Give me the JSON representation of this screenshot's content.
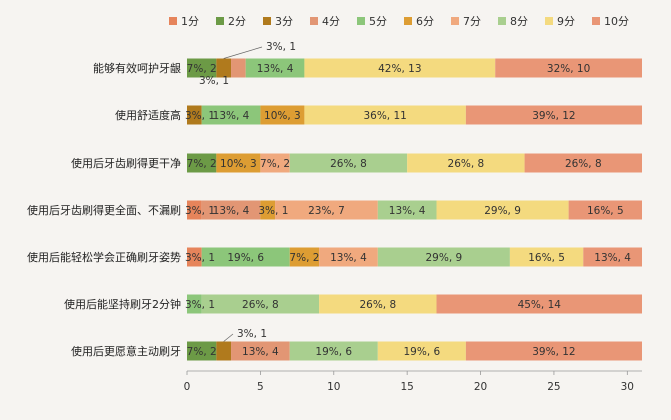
{
  "chart_data": {
    "type": "bar",
    "orientation": "horizontal",
    "stacked": true,
    "legend_position": "top",
    "grid": false,
    "xlim": [
      0,
      31
    ],
    "xticks": [
      0,
      5,
      10,
      15,
      20,
      25,
      30
    ],
    "legend": [
      "1分",
      "2分",
      "3分",
      "4分",
      "5分",
      "6分",
      "7分",
      "8分",
      "9分",
      "10分"
    ],
    "colors": [
      "#e6845b",
      "#6c9a46",
      "#b07a1d",
      "#e29674",
      "#8cc67a",
      "#dd9d33",
      "#f0a97e",
      "#a9cf8f",
      "#f4da7f",
      "#e99676"
    ],
    "categories": [
      "能够有效呵护牙龈",
      "使用舒适度高",
      "使用后牙齿刷得更干净",
      "使用后牙齿刷得更全面、不漏刷",
      "使用后能轻松学会正确刷牙姿势",
      "使用后能坚持刷牙2分钟",
      "使用后更愿意主动刷牙"
    ],
    "series": [
      {
        "name": "1分",
        "values": [
          0,
          0,
          0,
          1,
          1,
          0,
          0
        ]
      },
      {
        "name": "2分",
        "values": [
          2,
          0,
          2,
          0,
          0,
          0,
          2
        ]
      },
      {
        "name": "3分",
        "values": [
          1,
          1,
          0,
          0,
          0,
          0,
          1
        ]
      },
      {
        "name": "4分",
        "values": [
          1,
          0,
          0,
          4,
          0,
          0,
          4
        ]
      },
      {
        "name": "5分",
        "values": [
          4,
          4,
          0,
          0,
          6,
          1,
          0
        ]
      },
      {
        "name": "6分",
        "values": [
          0,
          3,
          3,
          1,
          2,
          0,
          0
        ]
      },
      {
        "name": "7分",
        "values": [
          0,
          0,
          2,
          7,
          4,
          0,
          0
        ]
      },
      {
        "name": "8分",
        "values": [
          0,
          0,
          8,
          4,
          9,
          8,
          6
        ]
      },
      {
        "name": "9分",
        "values": [
          13,
          11,
          8,
          9,
          5,
          8,
          6
        ]
      },
      {
        "name": "10分",
        "values": [
          10,
          12,
          8,
          5,
          4,
          14,
          12
        ]
      }
    ],
    "data_labels": [
      [
        "",
        "7%, 2",
        "3%, 1",
        "3%, 1",
        "13%, 4",
        "",
        "",
        "",
        "42%, 13",
        "32%, 10"
      ],
      [
        "",
        "",
        "3%, 1",
        "",
        "13%, 4",
        "10%, 3",
        "",
        "",
        "36%, 11",
        "39%, 12"
      ],
      [
        "",
        "7%, 2",
        "",
        "",
        "",
        "10%, 3",
        "7%, 2",
        "26%, 8",
        "26%, 8",
        "26%, 8"
      ],
      [
        "3%, 1",
        "",
        "",
        "13%, 4",
        "",
        "3%, 1",
        "23%, 7",
        "13%, 4",
        "29%, 9",
        "16%, 5"
      ],
      [
        "3%, 1",
        "",
        "",
        "",
        "19%, 6",
        "7%, 2",
        "13%, 4",
        "29%, 9",
        "16%, 5",
        "13%, 4"
      ],
      [
        "",
        "",
        "",
        "",
        "3%, 1",
        "",
        "",
        "26%, 8",
        "26%, 8",
        "45%, 14"
      ],
      [
        "",
        "7%, 2",
        "3%, 1",
        "13%, 4",
        "",
        "",
        "",
        "19%, 6",
        "19%, 6",
        "39%, 12"
      ]
    ]
  }
}
